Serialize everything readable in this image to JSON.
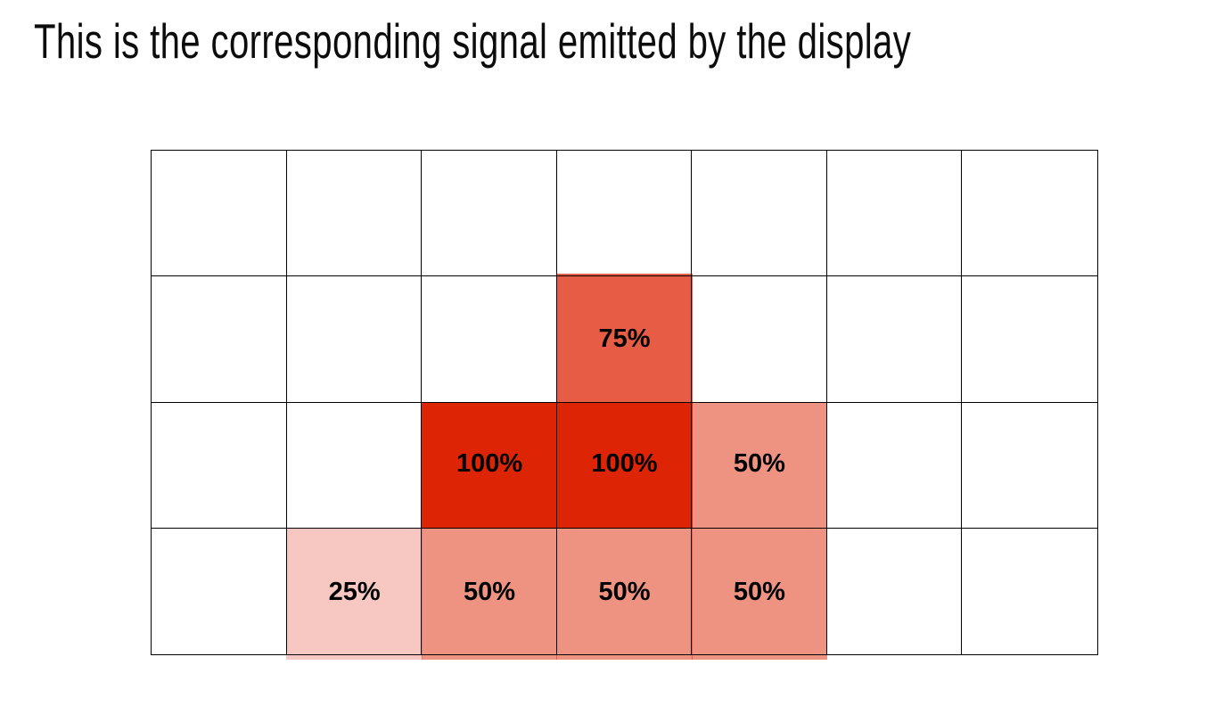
{
  "title": "This is the corresponding signal emitted by the display",
  "grid": {
    "columns": 7,
    "rows": 4,
    "line_color": "#000000",
    "base_signal_color": "#dd2506",
    "cells": [
      {
        "row": 1,
        "col": 3,
        "percent": 75,
        "label": "75%"
      },
      {
        "row": 2,
        "col": 2,
        "percent": 100,
        "label": "100%"
      },
      {
        "row": 2,
        "col": 3,
        "percent": 100,
        "label": "100%"
      },
      {
        "row": 2,
        "col": 4,
        "percent": 50,
        "label": "50%"
      },
      {
        "row": 3,
        "col": 1,
        "percent": 25,
        "label": "25%"
      },
      {
        "row": 3,
        "col": 2,
        "percent": 50,
        "label": "50%"
      },
      {
        "row": 3,
        "col": 3,
        "percent": 50,
        "label": "50%"
      },
      {
        "row": 3,
        "col": 4,
        "percent": 50,
        "label": "50%"
      }
    ]
  }
}
